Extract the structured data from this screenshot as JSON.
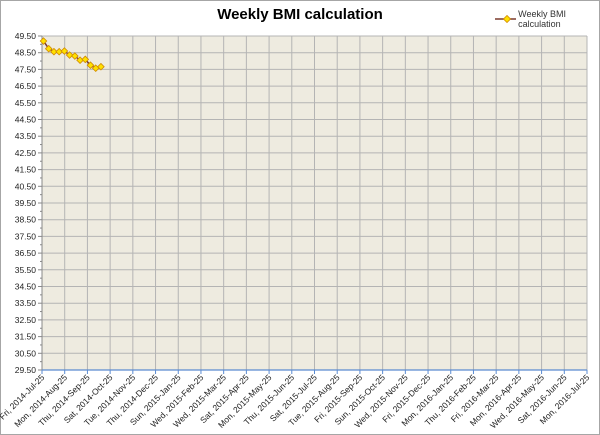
{
  "chart_data": {
    "type": "line",
    "title": "Weekly BMI calculation",
    "xlabel": "",
    "ylabel": "",
    "legend": {
      "position": "top-right",
      "entries": [
        "Weekly BMI calculation"
      ]
    },
    "grid": true,
    "ylim": [
      29.5,
      49.5
    ],
    "y_ticks": [
      "49.50",
      "48.50",
      "47.50",
      "46.50",
      "45.50",
      "44.50",
      "43.50",
      "42.50",
      "41.50",
      "40.50",
      "39.50",
      "38.50",
      "37.50",
      "36.50",
      "35.50",
      "34.50",
      "33.50",
      "32.50",
      "31.50",
      "30.50",
      "29.50"
    ],
    "x_ticks": [
      "Fri, 2014-Jul-25",
      "Mon, 2014-Aug-25",
      "Thu, 2014-Sep-25",
      "Sat, 2014-Oct-25",
      "Tue, 2014-Nov-25",
      "Thu, 2014-Dec-25",
      "Sun, 2015-Jan-25",
      "Wed, 2015-Feb-25",
      "Wed, 2015-Mar-25",
      "Sat, 2015-Apr-25",
      "Mon, 2015-May-25",
      "Thu, 2015-Jun-25",
      "Sat, 2015-Jul-25",
      "Tue, 2015-Aug-25",
      "Fri, 2015-Sep-25",
      "Sun, 2015-Oct-25",
      "Wed, 2015-Nov-25",
      "Fri, 2015-Dec-25",
      "Mon, 2016-Jan-25",
      "Thu, 2016-Feb-25",
      "Fri, 2016-Mar-25",
      "Mon, 2016-Apr-25",
      "Wed, 2016-May-25",
      "Sat, 2016-Jun-25",
      "Mon, 2016-Jul-25"
    ],
    "series": [
      {
        "name": "Weekly BMI calculation",
        "line_color": "#7b3b2f",
        "marker_color": "#ffe000",
        "x": [
          "2014-07-25",
          "2014-08-01",
          "2014-08-08",
          "2014-08-15",
          "2014-08-22",
          "2014-08-29",
          "2014-09-05",
          "2014-09-12",
          "2014-09-19",
          "2014-09-26",
          "2014-10-03",
          "2014-10-10"
        ],
        "values": [
          49.2,
          48.74,
          48.56,
          48.56,
          48.6,
          48.36,
          48.3,
          48.05,
          48.1,
          47.75,
          47.57,
          47.66
        ]
      }
    ]
  },
  "colors": {
    "plot_bg": "#eeebe0",
    "grid": "#b4b4b4",
    "axis": "#5b8bd0"
  }
}
